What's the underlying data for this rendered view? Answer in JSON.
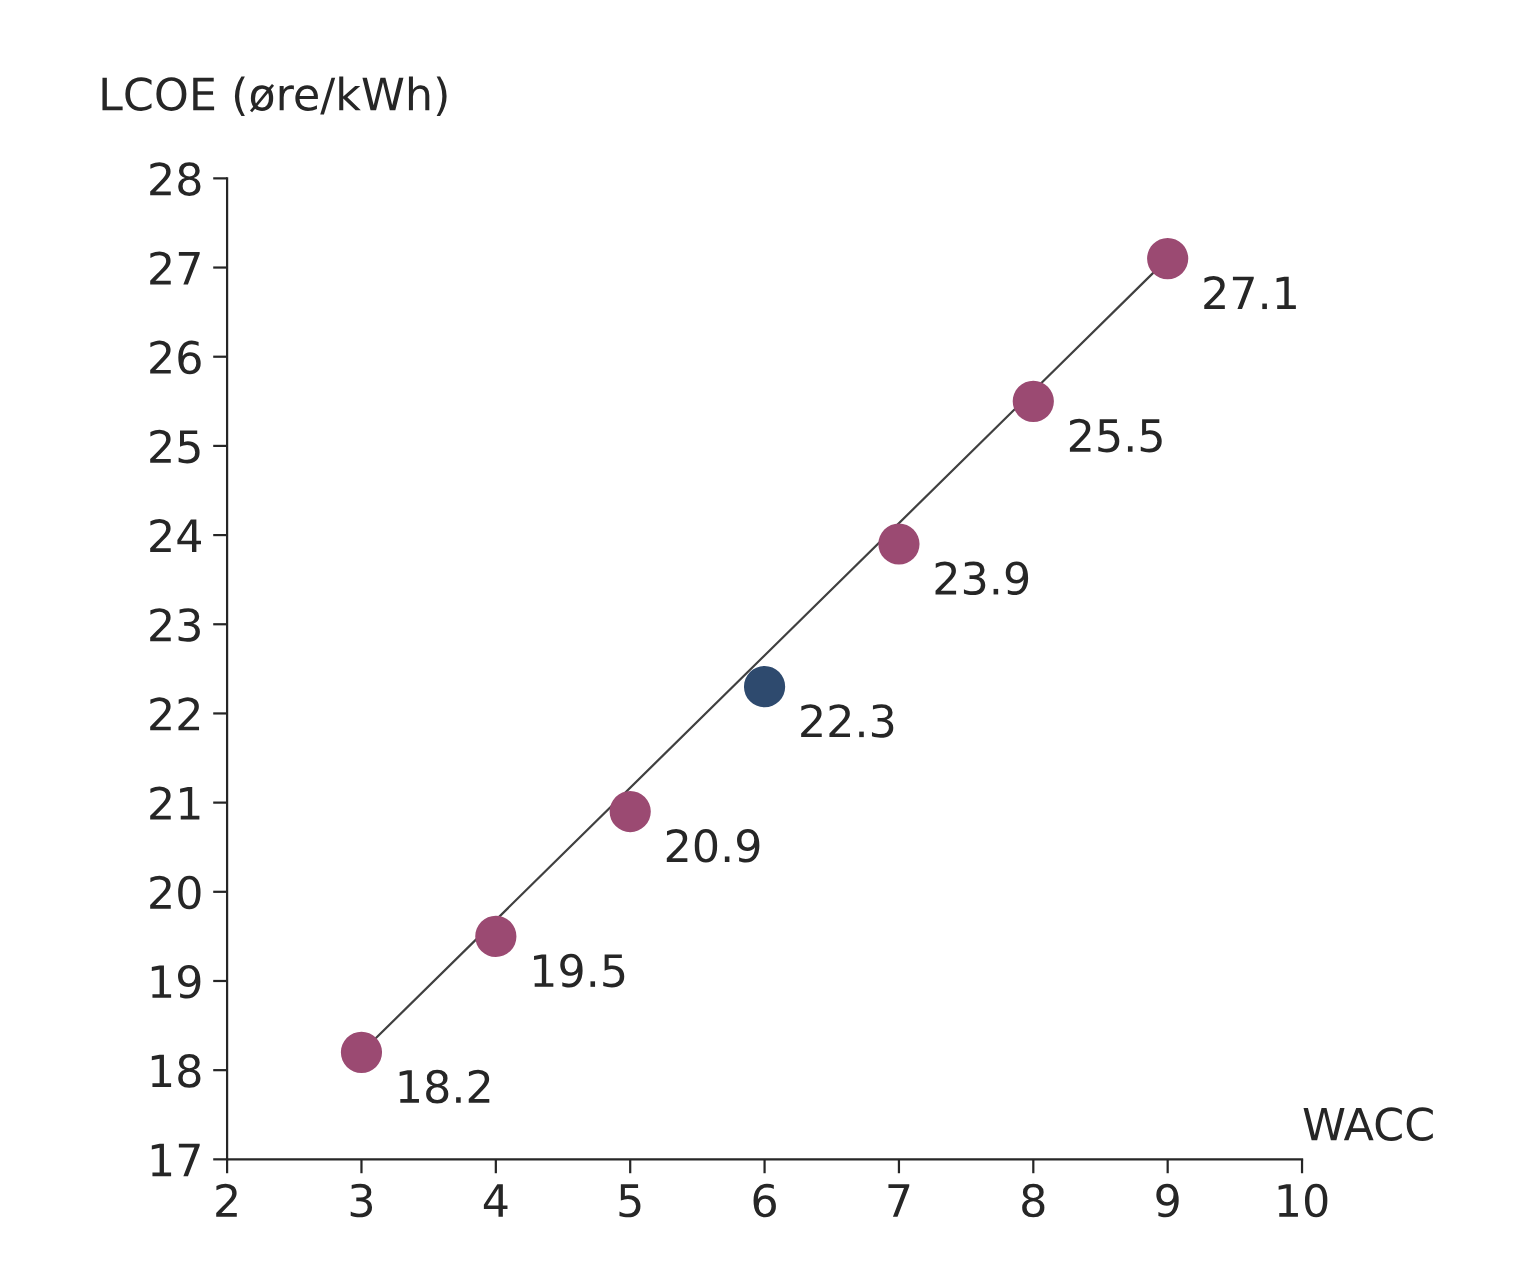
{
  "chart_data": {
    "type": "scatter",
    "xlabel": "WACC",
    "ylabel": "LCOE (øre/kWh)",
    "x": [
      3,
      4,
      5,
      6,
      7,
      8,
      9
    ],
    "series": [
      {
        "marker": "circle",
        "colors": [
          "#9b4a72",
          "#9b4a72",
          "#9b4a72",
          "#2e4a6e",
          "#9b4a72",
          "#9b4a72",
          "#9b4a72"
        ],
        "values": [
          18.2,
          19.5,
          20.9,
          22.3,
          23.9,
          25.5,
          27.1
        ],
        "value_labels": [
          "18.2",
          "19.5",
          "20.9",
          "22.3",
          "23.9",
          "25.5",
          "27.1"
        ]
      },
      {
        "type": "line",
        "color": "#404040",
        "x": [
          3,
          9
        ],
        "values": [
          18.2,
          27.1
        ]
      }
    ],
    "grid": false,
    "xlim": [
      2,
      10
    ],
    "xticks": [
      2,
      3,
      4,
      5,
      6,
      7,
      8,
      9,
      10
    ],
    "ylim": [
      17,
      28
    ],
    "yticks": [
      17,
      18,
      19,
      20,
      21,
      22,
      23,
      24,
      25,
      26,
      27,
      28
    ]
  }
}
